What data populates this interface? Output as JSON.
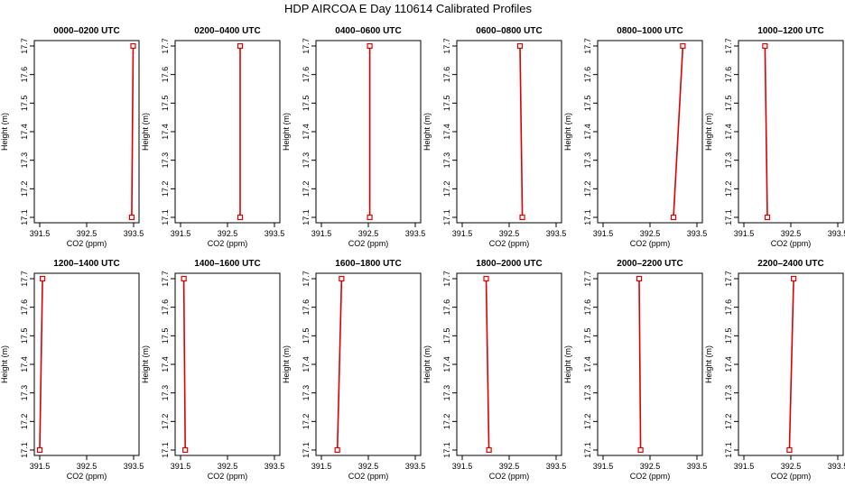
{
  "figure": {
    "title": "HDP AIRCOA E  Day 110614  Calibrated Profiles"
  },
  "chart_data": [
    {
      "type": "line",
      "title": "0000–0200 UTC",
      "xlabel": "CO2 (ppm)",
      "ylabel": "Height (m)",
      "xlim": [
        391.5,
        393.5
      ],
      "ylim": [
        17.1,
        17.7
      ],
      "xticks": [
        "391.5",
        "392.5",
        "393.5"
      ],
      "yticks": [
        "17.1",
        "17.2",
        "17.3",
        "17.4",
        "17.5",
        "17.6",
        "17.7"
      ],
      "series": [
        {
          "x": [
            393.46,
            393.49
          ],
          "y": [
            17.1,
            17.7
          ]
        }
      ]
    },
    {
      "type": "line",
      "title": "0200–0400 UTC",
      "xlabel": "CO2 (ppm)",
      "ylabel": "Height (m)",
      "xlim": [
        391.5,
        393.5
      ],
      "ylim": [
        17.1,
        17.7
      ],
      "xticks": [
        "391.5",
        "392.5",
        "393.5"
      ],
      "yticks": [
        "17.1",
        "17.2",
        "17.3",
        "17.4",
        "17.5",
        "17.6",
        "17.7"
      ],
      "series": [
        {
          "x": [
            392.77,
            392.77
          ],
          "y": [
            17.1,
            17.7
          ]
        }
      ]
    },
    {
      "type": "line",
      "title": "0400–0600 UTC",
      "xlabel": "CO2 (ppm)",
      "ylabel": "Height (m)",
      "xlim": [
        391.5,
        393.5
      ],
      "ylim": [
        17.1,
        17.7
      ],
      "xticks": [
        "391.5",
        "392.5",
        "393.5"
      ],
      "yticks": [
        "17.1",
        "17.2",
        "17.3",
        "17.4",
        "17.5",
        "17.6",
        "17.7"
      ],
      "series": [
        {
          "x": [
            392.53,
            392.53
          ],
          "y": [
            17.1,
            17.7
          ]
        }
      ]
    },
    {
      "type": "line",
      "title": "0600–0800 UTC",
      "xlabel": "CO2 (ppm)",
      "ylabel": "Height (m)",
      "xlim": [
        391.5,
        393.5
      ],
      "ylim": [
        17.1,
        17.7
      ],
      "xticks": [
        "391.5",
        "392.5",
        "393.5"
      ],
      "yticks": [
        "17.1",
        "17.2",
        "17.3",
        "17.4",
        "17.5",
        "17.6",
        "17.7"
      ],
      "series": [
        {
          "x": [
            392.78,
            392.73
          ],
          "y": [
            17.1,
            17.7
          ]
        }
      ]
    },
    {
      "type": "line",
      "title": "0800–1000 UTC",
      "xlabel": "CO2 (ppm)",
      "ylabel": "Height (m)",
      "xlim": [
        391.5,
        393.5
      ],
      "ylim": [
        17.1,
        17.7
      ],
      "xticks": [
        "391.5",
        "392.5",
        "393.5"
      ],
      "yticks": [
        "17.1",
        "17.2",
        "17.3",
        "17.4",
        "17.5",
        "17.6",
        "17.7"
      ],
      "series": [
        {
          "x": [
            393.0,
            393.2
          ],
          "y": [
            17.1,
            17.7
          ]
        }
      ]
    },
    {
      "type": "line",
      "title": "1000–1200 UTC",
      "xlabel": "CO2 (ppm)",
      "ylabel": "Height (m)",
      "xlim": [
        391.5,
        393.5
      ],
      "ylim": [
        17.1,
        17.7
      ],
      "xticks": [
        "391.5",
        "392.5",
        "393.5"
      ],
      "yticks": [
        "17.1",
        "17.2",
        "17.3",
        "17.4",
        "17.5",
        "17.6",
        "17.7"
      ],
      "series": [
        {
          "x": [
            392.0,
            391.95
          ],
          "y": [
            17.1,
            17.7
          ]
        }
      ]
    },
    {
      "type": "line",
      "title": "1200–1400 UTC",
      "xlabel": "CO2 (ppm)",
      "ylabel": "Height (m)",
      "xlim": [
        391.5,
        393.5
      ],
      "ylim": [
        17.1,
        17.7
      ],
      "xticks": [
        "391.5",
        "392.5",
        "393.5"
      ],
      "yticks": [
        "17.1",
        "17.2",
        "17.3",
        "17.4",
        "17.5",
        "17.6",
        "17.7"
      ],
      "series": [
        {
          "x": [
            391.5,
            391.56
          ],
          "y": [
            17.1,
            17.7
          ]
        }
      ]
    },
    {
      "type": "line",
      "title": "1400–1600 UTC",
      "xlabel": "CO2 (ppm)",
      "ylabel": "Height (m)",
      "xlim": [
        391.5,
        393.5
      ],
      "ylim": [
        17.1,
        17.7
      ],
      "xticks": [
        "391.5",
        "392.5",
        "393.5"
      ],
      "yticks": [
        "17.1",
        "17.2",
        "17.3",
        "17.4",
        "17.5",
        "17.6",
        "17.7"
      ],
      "series": [
        {
          "x": [
            391.6,
            391.57
          ],
          "y": [
            17.1,
            17.7
          ]
        }
      ]
    },
    {
      "type": "line",
      "title": "1600–1800 UTC",
      "xlabel": "CO2 (ppm)",
      "ylabel": "Height (m)",
      "xlim": [
        391.5,
        393.5
      ],
      "ylim": [
        17.1,
        17.7
      ],
      "xticks": [
        "391.5",
        "392.5",
        "393.5"
      ],
      "yticks": [
        "17.1",
        "17.2",
        "17.3",
        "17.4",
        "17.5",
        "17.6",
        "17.7"
      ],
      "series": [
        {
          "x": [
            391.84,
            391.93
          ],
          "y": [
            17.1,
            17.7
          ]
        }
      ]
    },
    {
      "type": "line",
      "title": "1800–2000 UTC",
      "xlabel": "CO2 (ppm)",
      "ylabel": "Height (m)",
      "xlim": [
        391.5,
        393.5
      ],
      "ylim": [
        17.1,
        17.7
      ],
      "xticks": [
        "391.5",
        "392.5",
        "393.5"
      ],
      "yticks": [
        "17.1",
        "17.2",
        "17.3",
        "17.4",
        "17.5",
        "17.6",
        "17.7"
      ],
      "series": [
        {
          "x": [
            392.07,
            392.01
          ],
          "y": [
            17.1,
            17.7
          ]
        }
      ]
    },
    {
      "type": "line",
      "title": "2000–2200 UTC",
      "xlabel": "CO2 (ppm)",
      "ylabel": "Height (m)",
      "xlim": [
        391.5,
        393.5
      ],
      "ylim": [
        17.1,
        17.7
      ],
      "xticks": [
        "391.5",
        "392.5",
        "393.5"
      ],
      "yticks": [
        "17.1",
        "17.2",
        "17.3",
        "17.4",
        "17.5",
        "17.6",
        "17.7"
      ],
      "series": [
        {
          "x": [
            392.3,
            392.27
          ],
          "y": [
            17.1,
            17.7
          ]
        }
      ]
    },
    {
      "type": "line",
      "title": "2200–2400 UTC",
      "xlabel": "CO2 (ppm)",
      "ylabel": "Height (m)",
      "xlim": [
        391.5,
        393.5
      ],
      "ylim": [
        17.1,
        17.7
      ],
      "xticks": [
        "391.5",
        "392.5",
        "393.5"
      ],
      "yticks": [
        "17.1",
        "17.2",
        "17.3",
        "17.4",
        "17.5",
        "17.6",
        "17.7"
      ],
      "series": [
        {
          "x": [
            392.47,
            392.56
          ],
          "y": [
            17.1,
            17.7
          ]
        }
      ]
    }
  ]
}
